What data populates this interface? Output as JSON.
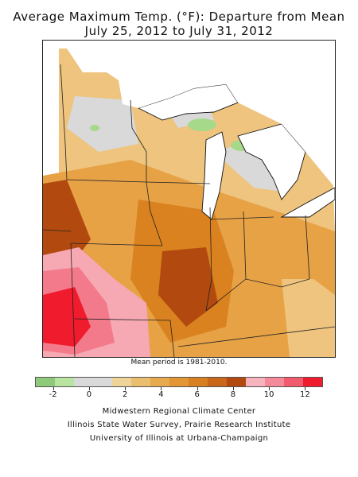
{
  "title_line1": "Average Maximum Temp. (°F): Departure from Mean",
  "title_line2": "July 25, 2012 to July 31, 2012",
  "mean_note": "Mean period is 1981-2010.",
  "legend": {
    "colors": [
      "#8fc97a",
      "#b9e3a1",
      "#d9d9d9",
      "#d9d9d9",
      "#efd49a",
      "#e9be6e",
      "#e6a94e",
      "#e29636",
      "#d87f22",
      "#c8661a",
      "#b24a10",
      "#f7b4bf",
      "#f48a99",
      "#f25b6d",
      "#f01b2c"
    ],
    "tick_labels": [
      "-2",
      "0",
      "2",
      "4",
      "6",
      "8",
      "10",
      "12"
    ],
    "tick_values": [
      -2,
      0,
      2,
      4,
      6,
      8,
      10,
      12
    ],
    "min": -3,
    "max": 13
  },
  "credits": [
    "Midwestern Regional Climate Center",
    "Illinois State Water Survey, Prairie Research Institute",
    "University of Illinois at Urbana-Champaign"
  ],
  "map_colors": {
    "light_orange": "#eec47e",
    "orange": "#e7a246",
    "dark_orange": "#d9821f",
    "brown": "#b24a10",
    "gray": "#d9d9d9",
    "green": "#a6d98a",
    "pink": "#f6a8b3",
    "hot_pink": "#f37a8b",
    "red": "#f01b2c",
    "water": "#ffffff"
  }
}
